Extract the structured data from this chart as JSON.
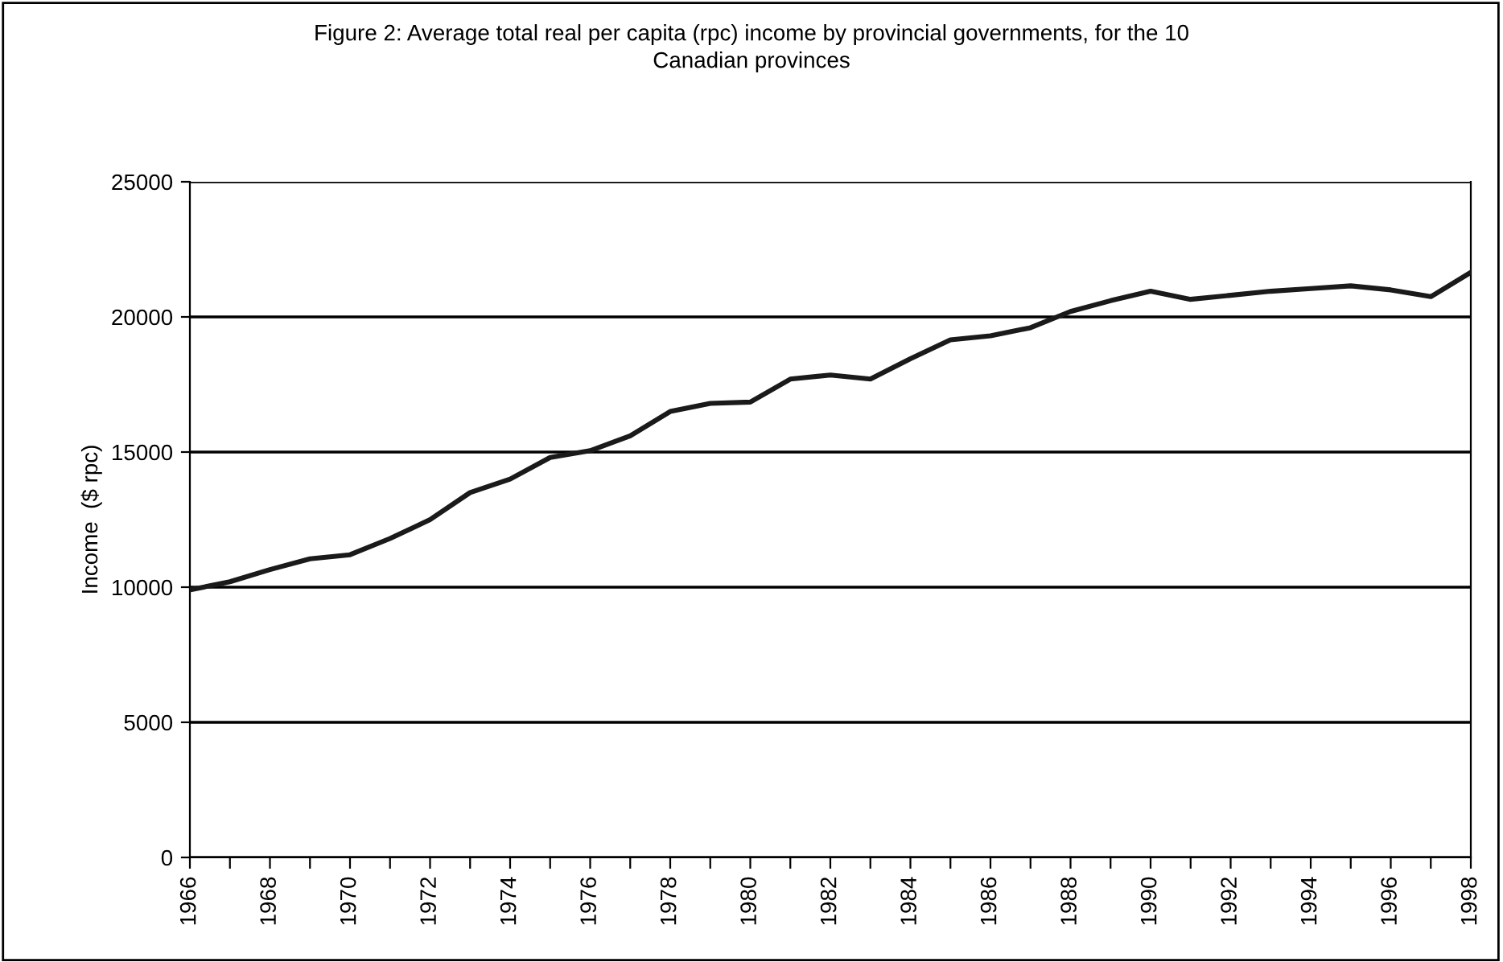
{
  "chart_data": {
    "type": "line",
    "title": "Figure 2: Average total real per capita (rpc) income by provincial governments, for the 10\nCanadian provinces",
    "ylabel": "Income  ($ rpc)",
    "x": [
      1966,
      1967,
      1968,
      1969,
      1970,
      1971,
      1972,
      1973,
      1974,
      1975,
      1976,
      1977,
      1978,
      1979,
      1980,
      1981,
      1982,
      1983,
      1984,
      1985,
      1986,
      1987,
      1988,
      1989,
      1990,
      1991,
      1992,
      1993,
      1994,
      1995,
      1996,
      1997,
      1998
    ],
    "series": [
      {
        "color": "#1a1a1a",
        "values": [
          9900,
          10200,
          10650,
          11050,
          11200,
          11800,
          12500,
          13500,
          14000,
          14800,
          15050,
          15600,
          16500,
          16800,
          16850,
          17700,
          17850,
          17700,
          18450,
          19150,
          19300,
          19600,
          20200,
          20600,
          20950,
          20650,
          20800,
          20950,
          21050,
          21150,
          21000,
          20750,
          21650
        ]
      }
    ],
    "xlim": [
      1966,
      1998
    ],
    "xticks": [
      1966,
      {
        "value": 1967,
        "label": null
      },
      1968,
      {
        "value": 1969,
        "label": null
      },
      1970,
      {
        "value": 1971,
        "label": null
      },
      1972,
      {
        "value": 1973,
        "label": null
      },
      1974,
      {
        "value": 1975,
        "label": null
      },
      1976,
      {
        "value": 1977,
        "label": null
      },
      1978,
      {
        "value": 1979,
        "label": null
      },
      1980,
      {
        "value": 1981,
        "label": null
      },
      1982,
      {
        "value": 1983,
        "label": null
      },
      1984,
      {
        "value": 1985,
        "label": null
      },
      1986,
      {
        "value": 1987,
        "label": null
      },
      1988,
      {
        "value": 1989,
        "label": null
      },
      1990,
      {
        "value": 1991,
        "label": null
      },
      1992,
      {
        "value": 1993,
        "label": null
      },
      1994,
      {
        "value": 1995,
        "label": null
      },
      1996,
      {
        "value": 1997,
        "label": null
      },
      1998
    ],
    "ylim": [
      0,
      25000
    ],
    "yticks": [
      0,
      5000,
      10000,
      15000,
      20000,
      25000
    ],
    "grid": "y",
    "legend": false,
    "marker": "none",
    "line_style": "solid"
  }
}
